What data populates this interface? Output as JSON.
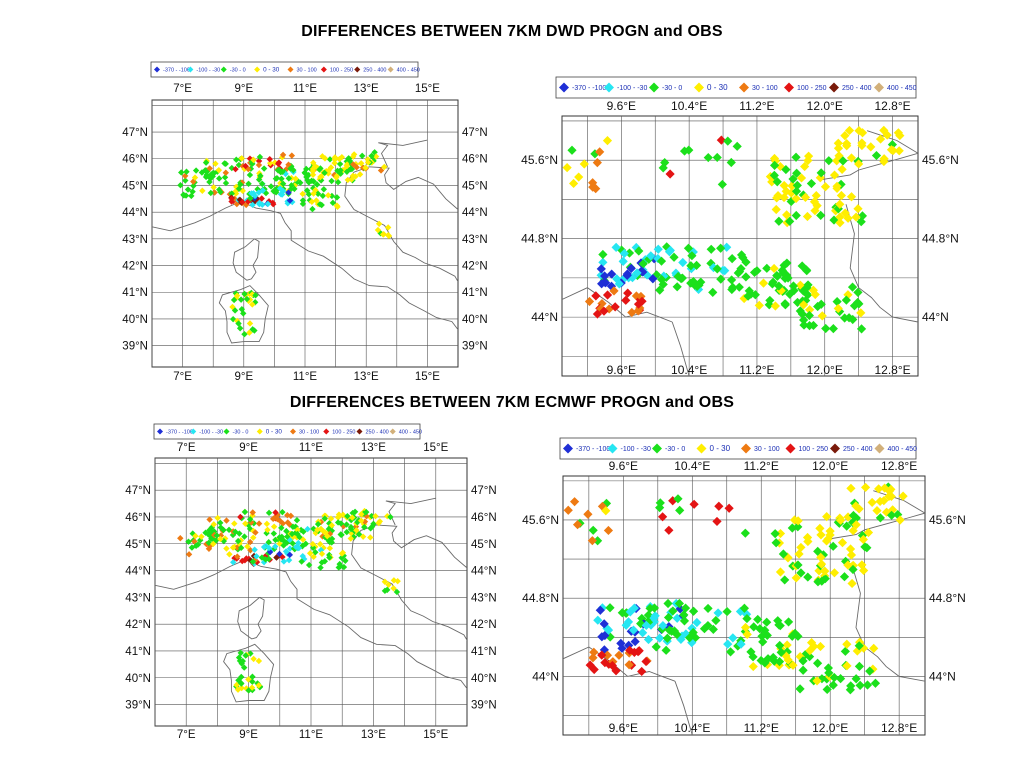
{
  "titles": {
    "top": "DIFFERENCES BETWEEN 7KM DWD PROGN and OBS",
    "bottom": "DIFFERENCES BETWEEN 7KM ECMWF PROGN and OBS"
  },
  "colors": {
    "blue": "#1f2fd6",
    "cyan": "#26e6f2",
    "green": "#1be01b",
    "yellow": "#ffee00",
    "orange": "#ee7a12",
    "red": "#e41414",
    "darkred": "#7a1a0a",
    "tan": "#d2b07a",
    "grid": "#333333",
    "coast": "#6a6a6a"
  },
  "legend": [
    {
      "label": "-370 - -100",
      "color": "blue"
    },
    {
      "label": "-100 - -30",
      "color": "cyan"
    },
    {
      "label": "-30 - 0",
      "color": "green"
    },
    {
      "label": "0 - 30",
      "color": "yellow"
    },
    {
      "label": "30 - 100",
      "color": "orange"
    },
    {
      "label": "100 - 250",
      "color": "red"
    },
    {
      "label": "250 - 400",
      "color": "darkred"
    },
    {
      "label": "400 - 450",
      "color": "tan"
    }
  ],
  "chart_data": [
    {
      "type": "scatter",
      "title": "DIFFERENCES BETWEEN 7KM DWD PROGN and OBS",
      "region": "full",
      "xlim": [
        6,
        16
      ],
      "ylim": [
        38.2,
        48.2
      ],
      "xticks": [
        "7°E",
        "9°E",
        "11°E",
        "13°E",
        "15°E"
      ],
      "xtick_values": [
        7,
        9,
        11,
        13,
        15
      ],
      "yticks": [
        "47°N",
        "46°N",
        "45°N",
        "44°N",
        "43°N",
        "42°N",
        "41°N",
        "40°N",
        "39°N"
      ],
      "ytick_values": [
        47,
        46,
        45,
        44,
        43,
        42,
        41,
        40,
        39
      ],
      "grid": true,
      "legend_position": "top"
    },
    {
      "type": "scatter",
      "title": "DIFFERENCES BETWEEN 7KM DWD PROGN and OBS",
      "region": "zoom",
      "xlim": [
        8.9,
        13.1
      ],
      "ylim": [
        43.4,
        46.05
      ],
      "xticks": [
        "9.6°E",
        "10.4°E",
        "11.2°E",
        "12.0°E",
        "12.8°E"
      ],
      "xtick_values": [
        9.6,
        10.4,
        11.2,
        12.0,
        12.8
      ],
      "yticks": [
        "45.6°N",
        "44.8°N",
        "44°N"
      ],
      "ytick_values": [
        45.6,
        44.8,
        44.0
      ],
      "grid": true,
      "legend_position": "top"
    },
    {
      "type": "scatter",
      "title": "DIFFERENCES BETWEEN 7KM ECMWF PROGN and OBS",
      "region": "full",
      "xlim": [
        6,
        16
      ],
      "ylim": [
        38.2,
        48.2
      ],
      "xticks": [
        "7°E",
        "9°E",
        "11°E",
        "13°E",
        "15°E"
      ],
      "xtick_values": [
        7,
        9,
        11,
        13,
        15
      ],
      "yticks": [
        "47°N",
        "46°N",
        "45°N",
        "44°N",
        "43°N",
        "42°N",
        "41°N",
        "40°N",
        "39°N"
      ],
      "ytick_values": [
        47,
        46,
        45,
        44,
        43,
        42,
        41,
        40,
        39
      ],
      "grid": true,
      "legend_position": "top"
    },
    {
      "type": "scatter",
      "title": "DIFFERENCES BETWEEN 7KM ECMWF PROGN and OBS",
      "region": "zoom",
      "xlim": [
        8.9,
        13.1
      ],
      "ylim": [
        43.4,
        46.05
      ],
      "xticks": [
        "9.6°E",
        "10.4°E",
        "11.2°E",
        "12.0°E",
        "12.8°E"
      ],
      "xtick_values": [
        9.6,
        10.4,
        11.2,
        12.0,
        12.8
      ],
      "yticks": [
        "45.6°N",
        "44.8°N",
        "44°N"
      ],
      "ytick_values": [
        45.6,
        44.8,
        44.0
      ],
      "grid": true,
      "legend_position": "top"
    }
  ]
}
